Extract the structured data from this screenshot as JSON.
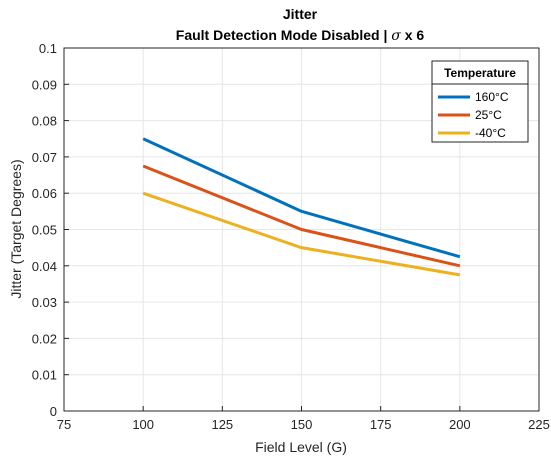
{
  "chart_data": {
    "type": "line",
    "title": "Jitter",
    "subtitle_text": "Fault Detection Mode Disabled | ",
    "subtitle_sigma": "σ",
    "subtitle_suffix": " x 6",
    "xlabel": "Field Level (G)",
    "ylabel": "Jitter (Target Degrees)",
    "xlim": [
      75,
      225
    ],
    "ylim": [
      0,
      0.1
    ],
    "xticks": [
      "75",
      "100",
      "125",
      "150",
      "175",
      "200",
      "225"
    ],
    "yticks": [
      "0",
      "0.01",
      "0.02",
      "0.03",
      "0.04",
      "0.05",
      "0.06",
      "0.07",
      "0.08",
      "0.09",
      "0.1"
    ],
    "grid": true,
    "legend_title": "Temperature",
    "legend_position": "top-right",
    "x": [
      100,
      150,
      200
    ],
    "series": [
      {
        "name": "160°C",
        "color": "#0072BD",
        "values": [
          0.075,
          0.055,
          0.0425
        ]
      },
      {
        "name": "25°C",
        "color": "#D95319",
        "values": [
          0.0675,
          0.05,
          0.04
        ]
      },
      {
        "name": "-40°C",
        "color": "#EDB120",
        "values": [
          0.06,
          0.045,
          0.0375
        ]
      }
    ]
  }
}
